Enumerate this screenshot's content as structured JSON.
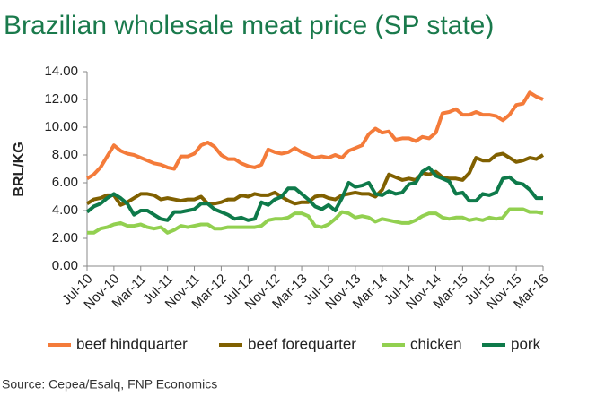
{
  "chart_data": {
    "type": "line",
    "title": "Brazilian wholesale meat price (SP state)",
    "y_label": "BRL/KG",
    "source": "Source: Cepea/Esalq, FNP Economics",
    "categories": [
      "Jul-10",
      null,
      null,
      null,
      "Nov-10",
      null,
      null,
      null,
      "Mar-11",
      null,
      null,
      null,
      "Jul-11",
      null,
      null,
      null,
      "Nov-11",
      null,
      null,
      null,
      "Mar-12",
      null,
      null,
      null,
      "Jul-12",
      null,
      null,
      null,
      "Nov-12",
      null,
      null,
      null,
      "Mar-13",
      null,
      null,
      null,
      "Jul-13",
      null,
      null,
      null,
      "Nov-13",
      null,
      null,
      null,
      "Mar-14",
      null,
      null,
      null,
      "Jul-14",
      null,
      null,
      null,
      "Nov-14",
      null,
      null,
      null,
      "Mar-15",
      null,
      null,
      null,
      "Jul-15",
      null,
      null,
      null,
      "Nov-15",
      null,
      null,
      null,
      "Mar-16"
    ],
    "series": [
      {
        "name": "beef hindquarter",
        "color": "#f47b3a",
        "values": [
          6.3,
          6.6,
          7.1,
          7.9,
          8.7,
          8.3,
          8.1,
          8.0,
          7.8,
          7.6,
          7.4,
          7.3,
          7.1,
          7.0,
          7.9,
          7.9,
          8.1,
          8.7,
          8.9,
          8.6,
          8.0,
          7.7,
          7.7,
          7.4,
          7.2,
          7.1,
          7.3,
          8.4,
          8.2,
          8.1,
          8.2,
          8.5,
          8.2,
          8.0,
          7.8,
          7.9,
          7.8,
          8.0,
          7.8,
          8.3,
          8.5,
          8.7,
          9.5,
          9.9,
          9.6,
          9.7,
          9.1,
          9.2,
          9.2,
          9.0,
          9.3,
          9.2,
          9.6,
          11.0,
          11.1,
          11.3,
          10.9,
          10.9,
          11.1,
          10.9,
          10.9,
          10.8,
          10.5,
          10.9,
          11.6,
          11.7,
          12.5,
          12.2,
          12.0
        ]
      },
      {
        "name": "beef forequarter",
        "color": "#806000",
        "values": [
          4.5,
          4.8,
          4.9,
          5.1,
          5.1,
          4.4,
          4.6,
          4.9,
          5.2,
          5.2,
          5.1,
          4.8,
          4.9,
          4.8,
          4.7,
          4.8,
          4.8,
          5.0,
          4.5,
          4.5,
          4.6,
          4.8,
          4.8,
          5.1,
          5.0,
          5.2,
          5.1,
          5.1,
          5.3,
          5.0,
          4.7,
          4.5,
          4.6,
          4.6,
          5.0,
          5.1,
          4.9,
          4.8,
          5.1,
          5.2,
          5.3,
          5.2,
          5.2,
          5.0,
          5.5,
          6.6,
          6.4,
          6.2,
          6.3,
          6.2,
          6.7,
          6.6,
          6.8,
          6.4,
          6.3,
          6.3,
          6.2,
          6.7,
          7.8,
          7.6,
          7.6,
          8.0,
          8.1,
          7.8,
          7.5,
          7.6,
          7.8,
          7.7,
          8.0
        ]
      },
      {
        "name": "chicken",
        "color": "#92d050",
        "values": [
          2.4,
          2.4,
          2.7,
          2.8,
          3.0,
          3.1,
          2.9,
          2.9,
          3.0,
          2.8,
          2.7,
          2.8,
          2.4,
          2.6,
          2.9,
          2.8,
          2.9,
          3.0,
          3.0,
          2.7,
          2.7,
          2.8,
          2.8,
          2.8,
          2.8,
          2.8,
          2.9,
          3.3,
          3.4,
          3.4,
          3.5,
          3.8,
          3.8,
          3.6,
          2.9,
          2.8,
          3.0,
          3.4,
          3.9,
          3.8,
          3.5,
          3.6,
          3.5,
          3.2,
          3.4,
          3.3,
          3.2,
          3.1,
          3.1,
          3.3,
          3.6,
          3.8,
          3.8,
          3.5,
          3.4,
          3.5,
          3.5,
          3.3,
          3.4,
          3.3,
          3.5,
          3.4,
          3.5,
          4.1,
          4.1,
          4.1,
          3.9,
          3.9,
          3.8
        ]
      },
      {
        "name": "pork",
        "color": "#0e7a4a",
        "values": [
          3.9,
          4.3,
          4.5,
          4.9,
          5.2,
          4.9,
          4.5,
          3.7,
          4.0,
          4.0,
          3.7,
          3.4,
          3.3,
          3.9,
          3.9,
          4.0,
          4.1,
          4.5,
          4.5,
          4.1,
          3.9,
          3.7,
          3.4,
          3.5,
          3.3,
          3.4,
          4.6,
          4.4,
          4.8,
          5.0,
          5.6,
          5.6,
          5.2,
          4.8,
          4.3,
          4.1,
          4.4,
          4.0,
          4.9,
          6.0,
          5.7,
          5.8,
          6.0,
          5.2,
          5.1,
          5.4,
          5.2,
          5.3,
          5.9,
          6.0,
          6.8,
          7.1,
          6.5,
          6.3,
          6.1,
          5.2,
          5.3,
          4.7,
          4.7,
          5.2,
          5.1,
          5.3,
          6.3,
          6.4,
          6.0,
          5.9,
          5.5,
          4.9,
          4.9
        ]
      }
    ],
    "ylim": [
      0,
      14
    ],
    "yticks": [
      {
        "value": 0,
        "label": "0.00"
      },
      {
        "value": 2,
        "label": "2.00"
      },
      {
        "value": 4,
        "label": "4.00"
      },
      {
        "value": 6,
        "label": "6.00"
      },
      {
        "value": 8,
        "label": "8.00"
      },
      {
        "value": 10,
        "label": "10.00"
      },
      {
        "value": 12,
        "label": "12.00"
      },
      {
        "value": 14,
        "label": "14.00"
      }
    ],
    "grid": false,
    "legend": "bottom"
  }
}
